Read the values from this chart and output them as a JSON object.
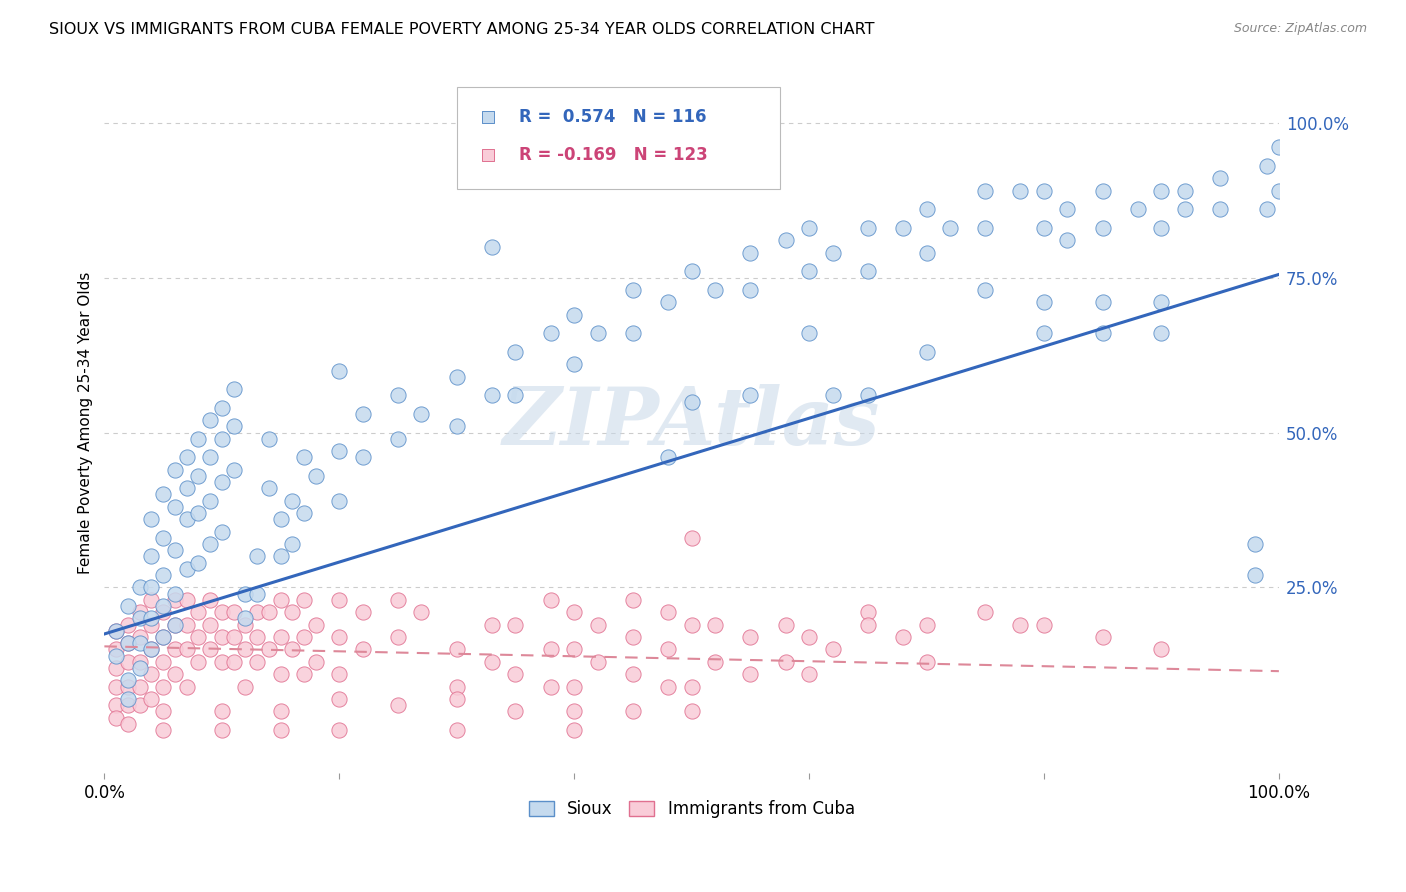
{
  "title": "SIOUX VS IMMIGRANTS FROM CUBA FEMALE POVERTY AMONG 25-34 YEAR OLDS CORRELATION CHART",
  "source": "Source: ZipAtlas.com",
  "ylabel": "Female Poverty Among 25-34 Year Olds",
  "ytick_labels": [
    "25.0%",
    "50.0%",
    "75.0%",
    "100.0%"
  ],
  "ytick_values": [
    0.25,
    0.5,
    0.75,
    1.0
  ],
  "legend_sioux_label": "Sioux",
  "legend_cuba_label": "Immigrants from Cuba",
  "sioux_R": "0.574",
  "sioux_N": "116",
  "cuba_R": "-0.169",
  "cuba_N": "123",
  "watermark": "ZIPAtlas",
  "sioux_fill": "#c5daee",
  "sioux_edge": "#5b8fc9",
  "cuba_fill": "#f9ccd8",
  "cuba_edge": "#e07090",
  "sioux_line_color": "#3366bb",
  "cuba_line_color": "#dd8899",
  "text_blue": "#3366bb",
  "text_pink": "#cc4477",
  "grid_color": "#cccccc",
  "sioux_line_y0": 0.175,
  "sioux_line_y1": 0.755,
  "cuba_line_y0": 0.155,
  "cuba_line_y1": 0.115,
  "xlim": [
    0.0,
    1.0
  ],
  "ylim": [
    -0.05,
    1.08
  ],
  "sioux_points": [
    [
      0.01,
      0.18
    ],
    [
      0.01,
      0.14
    ],
    [
      0.02,
      0.22
    ],
    [
      0.02,
      0.16
    ],
    [
      0.02,
      0.1
    ],
    [
      0.02,
      0.07
    ],
    [
      0.03,
      0.25
    ],
    [
      0.03,
      0.2
    ],
    [
      0.03,
      0.16
    ],
    [
      0.03,
      0.12
    ],
    [
      0.04,
      0.36
    ],
    [
      0.04,
      0.3
    ],
    [
      0.04,
      0.25
    ],
    [
      0.04,
      0.2
    ],
    [
      0.04,
      0.15
    ],
    [
      0.05,
      0.4
    ],
    [
      0.05,
      0.33
    ],
    [
      0.05,
      0.27
    ],
    [
      0.05,
      0.22
    ],
    [
      0.05,
      0.17
    ],
    [
      0.06,
      0.44
    ],
    [
      0.06,
      0.38
    ],
    [
      0.06,
      0.31
    ],
    [
      0.06,
      0.24
    ],
    [
      0.06,
      0.19
    ],
    [
      0.07,
      0.46
    ],
    [
      0.07,
      0.41
    ],
    [
      0.07,
      0.36
    ],
    [
      0.07,
      0.28
    ],
    [
      0.08,
      0.49
    ],
    [
      0.08,
      0.43
    ],
    [
      0.08,
      0.37
    ],
    [
      0.08,
      0.29
    ],
    [
      0.09,
      0.52
    ],
    [
      0.09,
      0.46
    ],
    [
      0.09,
      0.39
    ],
    [
      0.09,
      0.32
    ],
    [
      0.1,
      0.54
    ],
    [
      0.1,
      0.49
    ],
    [
      0.1,
      0.42
    ],
    [
      0.1,
      0.34
    ],
    [
      0.11,
      0.57
    ],
    [
      0.11,
      0.51
    ],
    [
      0.11,
      0.44
    ],
    [
      0.12,
      0.24
    ],
    [
      0.12,
      0.2
    ],
    [
      0.13,
      0.3
    ],
    [
      0.13,
      0.24
    ],
    [
      0.14,
      0.49
    ],
    [
      0.14,
      0.41
    ],
    [
      0.15,
      0.36
    ],
    [
      0.15,
      0.3
    ],
    [
      0.16,
      0.39
    ],
    [
      0.16,
      0.32
    ],
    [
      0.17,
      0.46
    ],
    [
      0.17,
      0.37
    ],
    [
      0.18,
      0.43
    ],
    [
      0.2,
      0.47
    ],
    [
      0.2,
      0.39
    ],
    [
      0.2,
      0.6
    ],
    [
      0.22,
      0.53
    ],
    [
      0.22,
      0.46
    ],
    [
      0.25,
      0.56
    ],
    [
      0.25,
      0.49
    ],
    [
      0.27,
      0.53
    ],
    [
      0.3,
      0.59
    ],
    [
      0.3,
      0.51
    ],
    [
      0.33,
      0.56
    ],
    [
      0.33,
      0.8
    ],
    [
      0.35,
      0.63
    ],
    [
      0.35,
      0.56
    ],
    [
      0.38,
      0.66
    ],
    [
      0.4,
      0.69
    ],
    [
      0.4,
      0.61
    ],
    [
      0.42,
      0.66
    ],
    [
      0.45,
      0.73
    ],
    [
      0.45,
      0.66
    ],
    [
      0.48,
      0.71
    ],
    [
      0.48,
      0.46
    ],
    [
      0.5,
      0.76
    ],
    [
      0.5,
      0.55
    ],
    [
      0.52,
      0.73
    ],
    [
      0.55,
      0.79
    ],
    [
      0.55,
      0.73
    ],
    [
      0.55,
      0.56
    ],
    [
      0.58,
      0.81
    ],
    [
      0.6,
      0.83
    ],
    [
      0.6,
      0.76
    ],
    [
      0.6,
      0.66
    ],
    [
      0.62,
      0.79
    ],
    [
      0.62,
      0.56
    ],
    [
      0.65,
      0.83
    ],
    [
      0.65,
      0.76
    ],
    [
      0.65,
      0.56
    ],
    [
      0.68,
      0.83
    ],
    [
      0.7,
      0.86
    ],
    [
      0.7,
      0.79
    ],
    [
      0.7,
      0.63
    ],
    [
      0.72,
      0.83
    ],
    [
      0.75,
      0.89
    ],
    [
      0.75,
      0.83
    ],
    [
      0.75,
      0.73
    ],
    [
      0.78,
      0.89
    ],
    [
      0.8,
      0.89
    ],
    [
      0.8,
      0.83
    ],
    [
      0.8,
      0.71
    ],
    [
      0.8,
      0.66
    ],
    [
      0.82,
      0.86
    ],
    [
      0.82,
      0.81
    ],
    [
      0.85,
      0.89
    ],
    [
      0.85,
      0.83
    ],
    [
      0.85,
      0.71
    ],
    [
      0.85,
      0.66
    ],
    [
      0.88,
      0.86
    ],
    [
      0.9,
      0.89
    ],
    [
      0.9,
      0.83
    ],
    [
      0.9,
      0.71
    ],
    [
      0.9,
      0.66
    ],
    [
      0.92,
      0.89
    ],
    [
      0.92,
      0.86
    ],
    [
      0.95,
      0.91
    ],
    [
      0.95,
      0.86
    ],
    [
      0.98,
      0.32
    ],
    [
      0.98,
      0.27
    ],
    [
      0.99,
      0.93
    ],
    [
      0.99,
      0.86
    ],
    [
      1.0,
      0.96
    ],
    [
      1.0,
      0.89
    ]
  ],
  "cuba_points": [
    [
      0.01,
      0.18
    ],
    [
      0.01,
      0.15
    ],
    [
      0.01,
      0.12
    ],
    [
      0.01,
      0.09
    ],
    [
      0.01,
      0.06
    ],
    [
      0.01,
      0.04
    ],
    [
      0.02,
      0.19
    ],
    [
      0.02,
      0.16
    ],
    [
      0.02,
      0.13
    ],
    [
      0.02,
      0.09
    ],
    [
      0.02,
      0.06
    ],
    [
      0.02,
      0.03
    ],
    [
      0.03,
      0.21
    ],
    [
      0.03,
      0.17
    ],
    [
      0.03,
      0.13
    ],
    [
      0.03,
      0.09
    ],
    [
      0.03,
      0.06
    ],
    [
      0.04,
      0.23
    ],
    [
      0.04,
      0.19
    ],
    [
      0.04,
      0.15
    ],
    [
      0.04,
      0.11
    ],
    [
      0.04,
      0.07
    ],
    [
      0.05,
      0.21
    ],
    [
      0.05,
      0.17
    ],
    [
      0.05,
      0.13
    ],
    [
      0.05,
      0.09
    ],
    [
      0.05,
      0.05
    ],
    [
      0.05,
      0.02
    ],
    [
      0.06,
      0.23
    ],
    [
      0.06,
      0.19
    ],
    [
      0.06,
      0.15
    ],
    [
      0.06,
      0.11
    ],
    [
      0.07,
      0.23
    ],
    [
      0.07,
      0.19
    ],
    [
      0.07,
      0.15
    ],
    [
      0.07,
      0.09
    ],
    [
      0.08,
      0.21
    ],
    [
      0.08,
      0.17
    ],
    [
      0.08,
      0.13
    ],
    [
      0.09,
      0.23
    ],
    [
      0.09,
      0.19
    ],
    [
      0.09,
      0.15
    ],
    [
      0.1,
      0.21
    ],
    [
      0.1,
      0.17
    ],
    [
      0.1,
      0.13
    ],
    [
      0.1,
      0.05
    ],
    [
      0.1,
      0.02
    ],
    [
      0.11,
      0.21
    ],
    [
      0.11,
      0.17
    ],
    [
      0.11,
      0.13
    ],
    [
      0.12,
      0.19
    ],
    [
      0.12,
      0.15
    ],
    [
      0.12,
      0.09
    ],
    [
      0.13,
      0.21
    ],
    [
      0.13,
      0.17
    ],
    [
      0.13,
      0.13
    ],
    [
      0.14,
      0.21
    ],
    [
      0.14,
      0.15
    ],
    [
      0.15,
      0.23
    ],
    [
      0.15,
      0.17
    ],
    [
      0.15,
      0.11
    ],
    [
      0.15,
      0.05
    ],
    [
      0.15,
      0.02
    ],
    [
      0.16,
      0.21
    ],
    [
      0.16,
      0.15
    ],
    [
      0.17,
      0.23
    ],
    [
      0.17,
      0.17
    ],
    [
      0.17,
      0.11
    ],
    [
      0.18,
      0.19
    ],
    [
      0.18,
      0.13
    ],
    [
      0.2,
      0.23
    ],
    [
      0.2,
      0.17
    ],
    [
      0.2,
      0.11
    ],
    [
      0.2,
      0.07
    ],
    [
      0.2,
      0.02
    ],
    [
      0.22,
      0.21
    ],
    [
      0.22,
      0.15
    ],
    [
      0.25,
      0.23
    ],
    [
      0.25,
      0.17
    ],
    [
      0.25,
      0.06
    ],
    [
      0.27,
      0.21
    ],
    [
      0.3,
      0.15
    ],
    [
      0.3,
      0.09
    ],
    [
      0.3,
      0.07
    ],
    [
      0.3,
      0.02
    ],
    [
      0.33,
      0.19
    ],
    [
      0.33,
      0.13
    ],
    [
      0.35,
      0.19
    ],
    [
      0.35,
      0.11
    ],
    [
      0.35,
      0.05
    ],
    [
      0.38,
      0.23
    ],
    [
      0.38,
      0.15
    ],
    [
      0.38,
      0.09
    ],
    [
      0.4,
      0.21
    ],
    [
      0.4,
      0.15
    ],
    [
      0.4,
      0.09
    ],
    [
      0.4,
      0.05
    ],
    [
      0.4,
      0.02
    ],
    [
      0.42,
      0.19
    ],
    [
      0.42,
      0.13
    ],
    [
      0.45,
      0.23
    ],
    [
      0.45,
      0.17
    ],
    [
      0.45,
      0.11
    ],
    [
      0.45,
      0.05
    ],
    [
      0.48,
      0.21
    ],
    [
      0.48,
      0.15
    ],
    [
      0.48,
      0.09
    ],
    [
      0.5,
      0.33
    ],
    [
      0.5,
      0.19
    ],
    [
      0.5,
      0.09
    ],
    [
      0.5,
      0.05
    ],
    [
      0.52,
      0.19
    ],
    [
      0.52,
      0.13
    ],
    [
      0.55,
      0.17
    ],
    [
      0.55,
      0.11
    ],
    [
      0.58,
      0.19
    ],
    [
      0.58,
      0.13
    ],
    [
      0.6,
      0.17
    ],
    [
      0.6,
      0.11
    ],
    [
      0.62,
      0.15
    ],
    [
      0.65,
      0.21
    ],
    [
      0.65,
      0.19
    ],
    [
      0.68,
      0.17
    ],
    [
      0.7,
      0.19
    ],
    [
      0.7,
      0.13
    ],
    [
      0.75,
      0.21
    ],
    [
      0.78,
      0.19
    ],
    [
      0.8,
      0.19
    ],
    [
      0.85,
      0.17
    ],
    [
      0.9,
      0.15
    ]
  ]
}
